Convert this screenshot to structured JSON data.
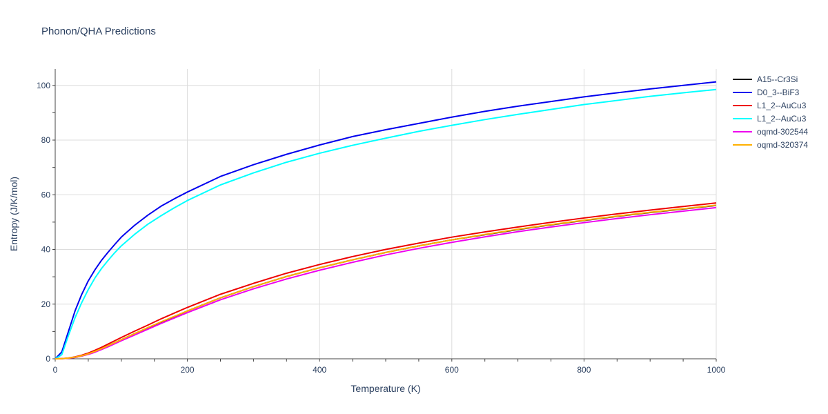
{
  "chart_data": {
    "type": "line",
    "title": "Phonon/QHA Predictions",
    "xlabel": "Temperature (K)",
    "ylabel": "Entropy (J/K/mol)",
    "xlim": [
      0,
      1000
    ],
    "ylim": [
      0,
      106
    ],
    "x_ticks": [
      0,
      200,
      400,
      600,
      800,
      1000
    ],
    "y_ticks": [
      0,
      20,
      40,
      60,
      80,
      100
    ],
    "grid": true,
    "legend_position": "top-right",
    "x": [
      0,
      10,
      20,
      30,
      40,
      50,
      60,
      70,
      80,
      90,
      100,
      120,
      140,
      160,
      180,
      200,
      250,
      300,
      350,
      400,
      450,
      500,
      550,
      600,
      650,
      700,
      750,
      800,
      850,
      900,
      950,
      1000
    ],
    "series": [
      {
        "name": "A15--Cr3Si",
        "color": "#000000",
        "values": [
          0,
          0.05,
          0.2,
          0.5,
          1.0,
          1.8,
          2.7,
          3.7,
          4.8,
          5.9,
          7.0,
          9.2,
          11.3,
          13.4,
          15.4,
          17.5,
          22.3,
          26.4,
          30.1,
          33.3,
          36.2,
          38.9,
          41.3,
          43.5,
          45.4,
          47.3,
          49.0,
          50.6,
          52.1,
          53.5,
          54.8,
          56.1
        ]
      },
      {
        "name": "D0_3--BiF3",
        "color": "#0000ee",
        "values": [
          0,
          2.5,
          10.0,
          17.5,
          23.5,
          28.5,
          32.5,
          36.0,
          39.0,
          41.8,
          44.5,
          48.8,
          52.5,
          55.8,
          58.5,
          61.0,
          66.7,
          71.0,
          74.8,
          78.2,
          81.3,
          83.8,
          86.1,
          88.4,
          90.5,
          92.4,
          94.1,
          95.8,
          97.3,
          98.7,
          100.0,
          101.3
        ]
      },
      {
        "name": "L1_2--AuCu3",
        "color": "#ee0000",
        "values": [
          0,
          0.05,
          0.3,
          0.7,
          1.3,
          2.1,
          3.1,
          4.2,
          5.4,
          6.6,
          7.8,
          10.1,
          12.3,
          14.6,
          16.7,
          18.8,
          23.6,
          27.6,
          31.3,
          34.5,
          37.4,
          40.0,
          42.3,
          44.5,
          46.4,
          48.2,
          49.9,
          51.5,
          53.0,
          54.4,
          55.7,
          57.0
        ]
      },
      {
        "name": "L1_2--AuCu3",
        "color": "#00ffff",
        "values": [
          0,
          1.5,
          8.5,
          15.0,
          20.5,
          25.3,
          29.5,
          33.0,
          36.0,
          38.8,
          41.3,
          45.5,
          49.2,
          52.3,
          55.2,
          57.9,
          63.6,
          68.0,
          71.9,
          75.2,
          78.1,
          80.7,
          83.2,
          85.4,
          87.5,
          89.4,
          91.2,
          93.0,
          94.5,
          96.0,
          97.3,
          98.5
        ]
      },
      {
        "name": "oqmd-302544",
        "color": "#ee00ee",
        "values": [
          0,
          0.05,
          0.2,
          0.5,
          1.0,
          1.6,
          2.4,
          3.4,
          4.4,
          5.5,
          6.6,
          8.7,
          10.8,
          12.9,
          14.9,
          16.9,
          21.6,
          25.6,
          29.2,
          32.4,
          35.3,
          38.0,
          40.4,
          42.6,
          44.6,
          46.5,
          48.2,
          49.8,
          51.3,
          52.7,
          54.0,
          55.3
        ]
      },
      {
        "name": "oqmd-320374",
        "color": "#ffb000",
        "values": [
          0,
          0.05,
          0.25,
          0.6,
          1.1,
          1.8,
          2.7,
          3.7,
          4.8,
          5.9,
          7.0,
          9.2,
          11.4,
          13.5,
          15.5,
          17.5,
          22.3,
          26.4,
          30.1,
          33.3,
          36.2,
          38.9,
          41.3,
          43.5,
          45.5,
          47.4,
          49.1,
          50.7,
          52.2,
          53.6,
          54.9,
          56.2
        ]
      }
    ]
  }
}
